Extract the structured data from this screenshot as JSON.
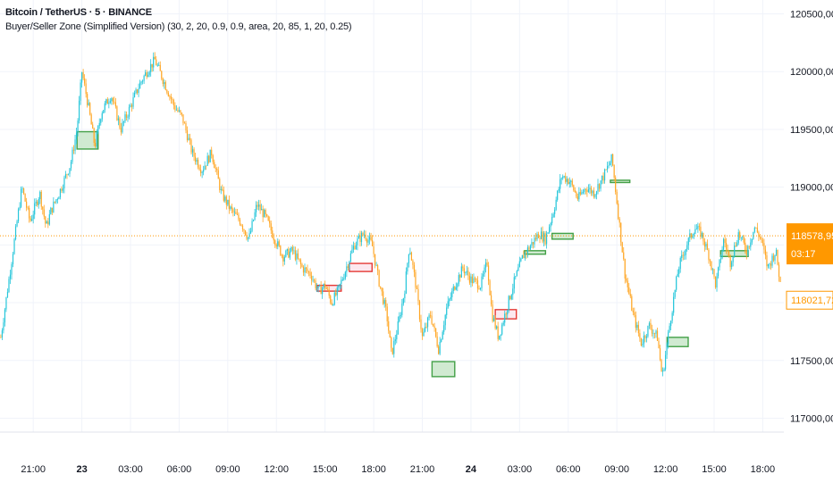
{
  "header": {
    "symbol_title": "Bitcoin / TetherUS · 5 · BINANCE",
    "indicator_label": "Buyer/Seller Zone (Simplified Version) (30, 2, 20, 0.9, 0.9, area, 20, 85, 1, 20, 0.25)"
  },
  "colors": {
    "up_candle": "#26c6da",
    "down_candle": "#ffa726",
    "current_price": "#ff9800",
    "buyer_zone_fill": "#c8e6c9",
    "buyer_zone_border": "#43a047",
    "seller_zone_fill": "#fce4ec",
    "seller_zone_border": "#e53935",
    "grid": "#f0f3fa"
  },
  "price_badges": {
    "current_price": "118578,95",
    "countdown": "03:17",
    "secondary_price": "118021,72"
  },
  "chart_data": {
    "type": "candlestick",
    "title": "Bitcoin / TetherUS · 5 · BINANCE",
    "ylim": [
      116880,
      120620
    ],
    "y_ticks": [
      "120500,00",
      "120000,00",
      "119500,00",
      "119000,00",
      "117500,00",
      "117000,00"
    ],
    "y_tick_values": [
      120500,
      120000,
      119500,
      119000,
      117500,
      117000
    ],
    "x_ticks": [
      {
        "label": "21:00",
        "bold": false,
        "hour": 21
      },
      {
        "label": "23",
        "bold": true,
        "hour": 24
      },
      {
        "label": "03:00",
        "bold": false,
        "hour": 27
      },
      {
        "label": "06:00",
        "bold": false,
        "hour": 30
      },
      {
        "label": "09:00",
        "bold": false,
        "hour": 33
      },
      {
        "label": "12:00",
        "bold": false,
        "hour": 36
      },
      {
        "label": "15:00",
        "bold": false,
        "hour": 39
      },
      {
        "label": "18:00",
        "bold": false,
        "hour": 42
      },
      {
        "label": "21:00",
        "bold": false,
        "hour": 45
      },
      {
        "label": "24",
        "bold": true,
        "hour": 48
      },
      {
        "label": "03:00",
        "bold": false,
        "hour": 51
      },
      {
        "label": "06:00",
        "bold": false,
        "hour": 54
      },
      {
        "label": "09:00",
        "bold": false,
        "hour": 57
      },
      {
        "label": "12:00",
        "bold": false,
        "hour": 60
      },
      {
        "label": "15:00",
        "bold": false,
        "hour": 63
      },
      {
        "label": "18:00",
        "bold": false,
        "hour": 66
      }
    ],
    "x_range_hours": [
      18.95,
      67.3
    ],
    "price_path": [
      [
        19.0,
        117700
      ],
      [
        19.6,
        118300
      ],
      [
        20.3,
        119000
      ],
      [
        20.8,
        118700
      ],
      [
        21.4,
        118950
      ],
      [
        21.8,
        118650
      ],
      [
        22.1,
        118800
      ],
      [
        22.6,
        118950
      ],
      [
        23.3,
        119200
      ],
      [
        23.7,
        119500
      ],
      [
        24.0,
        120000
      ],
      [
        24.4,
        119700
      ],
      [
        24.8,
        119350
      ],
      [
        25.2,
        119650
      ],
      [
        25.8,
        119800
      ],
      [
        26.4,
        119500
      ],
      [
        27.0,
        119700
      ],
      [
        27.6,
        119900
      ],
      [
        28.0,
        120000
      ],
      [
        28.5,
        120100
      ],
      [
        29.1,
        119900
      ],
      [
        29.7,
        119700
      ],
      [
        30.2,
        119600
      ],
      [
        30.8,
        119300
      ],
      [
        31.4,
        119150
      ],
      [
        32.0,
        119300
      ],
      [
        32.6,
        118950
      ],
      [
        33.2,
        118800
      ],
      [
        33.8,
        118700
      ],
      [
        34.3,
        118550
      ],
      [
        34.8,
        118850
      ],
      [
        35.3,
        118750
      ],
      [
        35.9,
        118550
      ],
      [
        36.4,
        118400
      ],
      [
        37.0,
        118450
      ],
      [
        37.6,
        118300
      ],
      [
        38.1,
        118250
      ],
      [
        38.6,
        118100
      ],
      [
        39.0,
        118150
      ],
      [
        39.4,
        118000
      ],
      [
        39.8,
        118100
      ],
      [
        40.3,
        118300
      ],
      [
        40.8,
        118500
      ],
      [
        41.4,
        118600
      ],
      [
        41.9,
        118500
      ],
      [
        42.3,
        118200
      ],
      [
        42.8,
        117900
      ],
      [
        43.1,
        117550
      ],
      [
        43.5,
        117800
      ],
      [
        43.9,
        118100
      ],
      [
        44.2,
        118500
      ],
      [
        44.6,
        118150
      ],
      [
        45.0,
        117700
      ],
      [
        45.5,
        117900
      ],
      [
        46.0,
        117600
      ],
      [
        46.5,
        117950
      ],
      [
        47.0,
        118150
      ],
      [
        47.5,
        118300
      ],
      [
        48.0,
        118200
      ],
      [
        48.6,
        118150
      ],
      [
        49.0,
        118350
      ],
      [
        49.3,
        117900
      ],
      [
        49.7,
        117700
      ],
      [
        50.1,
        117900
      ],
      [
        50.6,
        118150
      ],
      [
        51.2,
        118400
      ],
      [
        51.7,
        118500
      ],
      [
        52.2,
        118600
      ],
      [
        52.6,
        118550
      ],
      [
        53.1,
        118800
      ],
      [
        53.6,
        119100
      ],
      [
        54.1,
        119050
      ],
      [
        54.6,
        118900
      ],
      [
        55.1,
        119000
      ],
      [
        55.6,
        118950
      ],
      [
        56.2,
        119100
      ],
      [
        56.7,
        119250
      ],
      [
        57.1,
        118750
      ],
      [
        57.5,
        118250
      ],
      [
        58.0,
        117900
      ],
      [
        58.5,
        117650
      ],
      [
        59.0,
        117800
      ],
      [
        59.5,
        117700
      ],
      [
        59.8,
        117350
      ],
      [
        60.3,
        117850
      ],
      [
        60.8,
        118300
      ],
      [
        61.3,
        118500
      ],
      [
        61.8,
        118650
      ],
      [
        62.2,
        118600
      ],
      [
        62.7,
        118400
      ],
      [
        63.1,
        118150
      ],
      [
        63.6,
        118550
      ],
      [
        64.0,
        118350
      ],
      [
        64.5,
        118600
      ],
      [
        65.0,
        118450
      ],
      [
        65.5,
        118650
      ],
      [
        65.9,
        118550
      ],
      [
        66.3,
        118300
      ],
      [
        66.8,
        118450
      ],
      [
        67.1,
        118150
      ]
    ],
    "zones": [
      {
        "type": "buyer",
        "x0": 23.7,
        "x1": 25.0,
        "y_top": 119480,
        "y_bottom": 119330
      },
      {
        "type": "seller",
        "x0": 38.5,
        "x1": 40.0,
        "y_top": 118150,
        "y_bottom": 118100
      },
      {
        "type": "seller",
        "x0": 40.5,
        "x1": 41.9,
        "y_top": 118340,
        "y_bottom": 118270
      },
      {
        "type": "buyer",
        "x0": 45.6,
        "x1": 47.0,
        "y_top": 117490,
        "y_bottom": 117360
      },
      {
        "type": "seller",
        "x0": 49.5,
        "x1": 50.8,
        "y_top": 117940,
        "y_bottom": 117860
      },
      {
        "type": "buyer",
        "x0": 51.3,
        "x1": 52.6,
        "y_top": 118450,
        "y_bottom": 118420
      },
      {
        "type": "buyer",
        "x0": 53.0,
        "x1": 54.3,
        "y_top": 118600,
        "y_bottom": 118550
      },
      {
        "type": "buyer",
        "x0": 56.6,
        "x1": 57.8,
        "y_top": 119060,
        "y_bottom": 119040
      },
      {
        "type": "buyer",
        "x0": 60.1,
        "x1": 61.4,
        "y_top": 117700,
        "y_bottom": 117620
      },
      {
        "type": "buyer",
        "x0": 63.4,
        "x1": 65.1,
        "y_top": 118450,
        "y_bottom": 118400
      }
    ],
    "current_price_value": 118578.95,
    "secondary_price_value": 118021.72
  }
}
